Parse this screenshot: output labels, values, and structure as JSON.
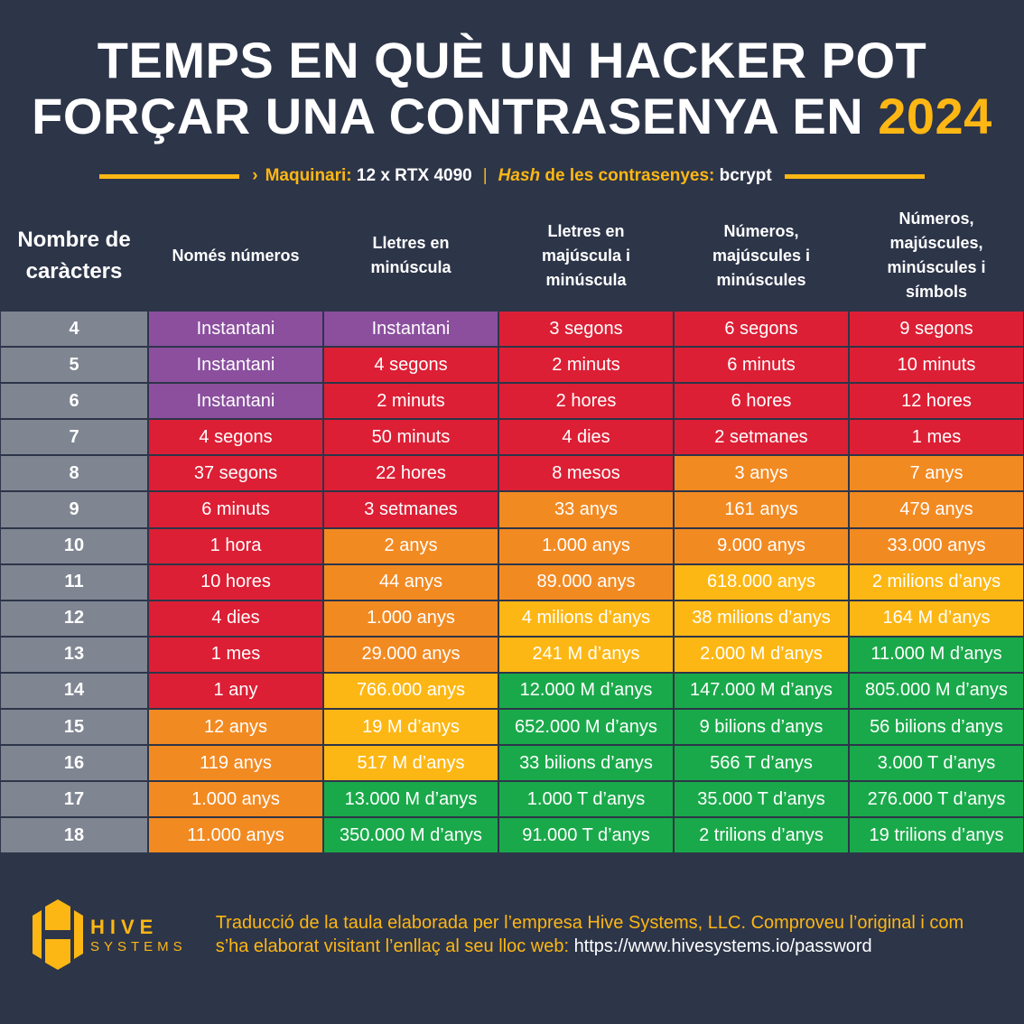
{
  "title": {
    "line1": "TEMPS EN QUÈ UN HACKER POT",
    "line2": "FORÇAR UNA CONTRASENYA EN",
    "year": "2024"
  },
  "subtitle": {
    "arrow": "›",
    "hw_label": "Maquinari:",
    "hw_value": "12 x RTX 4090",
    "sep": "|",
    "hash_italic": "Hash",
    "hash_label": "de les contrasenyes:",
    "hash_value": "bcrypt"
  },
  "headers": [
    "Nombre de caràcters",
    "Només números",
    "Lletres en minúscula",
    "Lletres en majúscula i minúscula",
    "Números, majúscules i minúscules",
    "Números, majúscules, minúscules i símbols"
  ],
  "colors": {
    "P": "#8b4f9e",
    "R": "#dc1f35",
    "O": "#f28a22",
    "Y": "#fdb714",
    "G": "#1aa94a",
    "bg": "#2d3549"
  },
  "rows": [
    {
      "n": "4",
      "cells": [
        "Instantani",
        "Instantani",
        "3 segons",
        "6 segons",
        "9 segons"
      ],
      "levels": [
        "P",
        "P",
        "R",
        "R",
        "R"
      ]
    },
    {
      "n": "5",
      "cells": [
        "Instantani",
        "4 segons",
        "2 minuts",
        "6 minuts",
        "10 minuts"
      ],
      "levels": [
        "P",
        "R",
        "R",
        "R",
        "R"
      ]
    },
    {
      "n": "6",
      "cells": [
        "Instantani",
        "2 minuts",
        "2 hores",
        "6 hores",
        "12 hores"
      ],
      "levels": [
        "P",
        "R",
        "R",
        "R",
        "R"
      ]
    },
    {
      "n": "7",
      "cells": [
        "4 segons",
        "50 minuts",
        "4 dies",
        "2 setmanes",
        "1 mes"
      ],
      "levels": [
        "R",
        "R",
        "R",
        "R",
        "R"
      ]
    },
    {
      "n": "8",
      "cells": [
        "37 segons",
        "22 hores",
        "8 mesos",
        "3 anys",
        "7 anys"
      ],
      "levels": [
        "R",
        "R",
        "R",
        "O",
        "O"
      ]
    },
    {
      "n": "9",
      "cells": [
        "6 minuts",
        "3 setmanes",
        "33 anys",
        "161 anys",
        "479 anys"
      ],
      "levels": [
        "R",
        "R",
        "O",
        "O",
        "O"
      ]
    },
    {
      "n": "10",
      "cells": [
        "1 hora",
        "2 anys",
        "1.000 anys",
        "9.000 anys",
        "33.000 anys"
      ],
      "levels": [
        "R",
        "O",
        "O",
        "O",
        "O"
      ]
    },
    {
      "n": "11",
      "cells": [
        "10 hores",
        "44 anys",
        "89.000 anys",
        "618.000 anys",
        "2 milions d’anys"
      ],
      "levels": [
        "R",
        "O",
        "O",
        "Y",
        "Y"
      ]
    },
    {
      "n": "12",
      "cells": [
        "4 dies",
        "1.000 anys",
        "4 milions d’anys",
        "38 milions d’anys",
        "164 M d’anys"
      ],
      "levels": [
        "R",
        "O",
        "Y",
        "Y",
        "Y"
      ]
    },
    {
      "n": "13",
      "cells": [
        "1 mes",
        "29.000 anys",
        "241 M d’anys",
        "2.000 M d’anys",
        "11.000 M d’anys"
      ],
      "levels": [
        "R",
        "O",
        "Y",
        "Y",
        "G"
      ]
    },
    {
      "n": "14",
      "cells": [
        "1 any",
        "766.000 anys",
        "12.000 M d’anys",
        "147.000 M d’anys",
        "805.000 M d’anys"
      ],
      "levels": [
        "R",
        "Y",
        "G",
        "G",
        "G"
      ]
    },
    {
      "n": "15",
      "cells": [
        "12 anys",
        "19 M d’anys",
        "652.000 M d’anys",
        "9 bilions d’anys",
        "56 bilions d’anys"
      ],
      "levels": [
        "O",
        "Y",
        "G",
        "G",
        "G"
      ]
    },
    {
      "n": "16",
      "cells": [
        "119 anys",
        "517 M d’anys",
        "33 bilions d’anys",
        "566 T d’anys",
        "3.000 T d’anys"
      ],
      "levels": [
        "O",
        "Y",
        "G",
        "G",
        "G"
      ]
    },
    {
      "n": "17",
      "cells": [
        "1.000 anys",
        "13.000 M d’anys",
        "1.000 T d’anys",
        "35.000 T d’anys",
        "276.000 T d’anys"
      ],
      "levels": [
        "O",
        "G",
        "G",
        "G",
        "G"
      ]
    },
    {
      "n": "18",
      "cells": [
        "11.000 anys",
        "350.000 M d’anys",
        "91.000 T d’anys",
        "2 trilions d’anys",
        "19 trilions d’anys"
      ],
      "levels": [
        "O",
        "G",
        "G",
        "G",
        "G"
      ]
    }
  ],
  "footer": {
    "logo_top": "HIVE",
    "logo_bottom": "SYSTEMS",
    "text": "Traducció de la taula elaborada per l’empresa Hive Systems, LLC. Comproveu l’original i com s’ha elaborat visitant  l’enllaç al seu lloc web: ",
    "url": "https://www.hivesystems.io/password"
  }
}
